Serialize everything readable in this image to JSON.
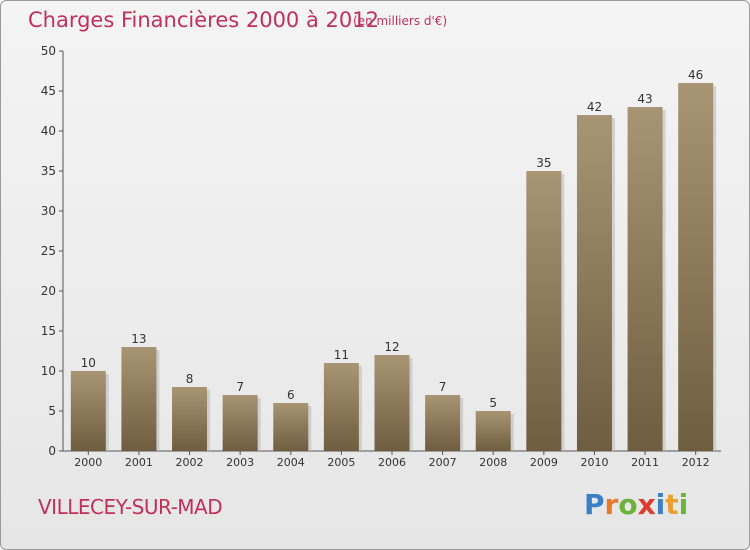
{
  "title": "Charges Financières 2000 à 2012",
  "subtitle": "(en milliers d'€)",
  "town": "VILLECEY-SUR-MAD",
  "logo": {
    "text": "Proxiti",
    "letters": [
      "P",
      "r",
      "o",
      "x",
      "i",
      "t",
      "i"
    ],
    "colors": [
      "#3a7fc4",
      "#e8792a",
      "#6bb33a",
      "#e03a2a",
      "#3a7fc4",
      "#e8a030",
      "#6bb33a"
    ]
  },
  "colors": {
    "bar_top": "#a89574",
    "bar_bottom": "#6f5d40",
    "title": "#c0305a"
  },
  "chart_data": {
    "type": "bar",
    "categories": [
      "2000",
      "2001",
      "2002",
      "2003",
      "2004",
      "2005",
      "2006",
      "2007",
      "2008",
      "2009",
      "2010",
      "2011",
      "2012"
    ],
    "values": [
      10,
      13,
      8,
      7,
      6,
      11,
      12,
      7,
      5,
      35,
      42,
      43,
      46
    ],
    "data_labels": [
      "10",
      "13",
      "8",
      "7",
      "6",
      "11",
      "12",
      "7",
      "5",
      "35",
      "42",
      "43",
      "46"
    ],
    "yticks": [
      "0",
      "5",
      "10",
      "15",
      "20",
      "25",
      "30",
      "35",
      "40",
      "45",
      "50"
    ],
    "ylim": [
      0,
      50
    ],
    "grid": false
  }
}
